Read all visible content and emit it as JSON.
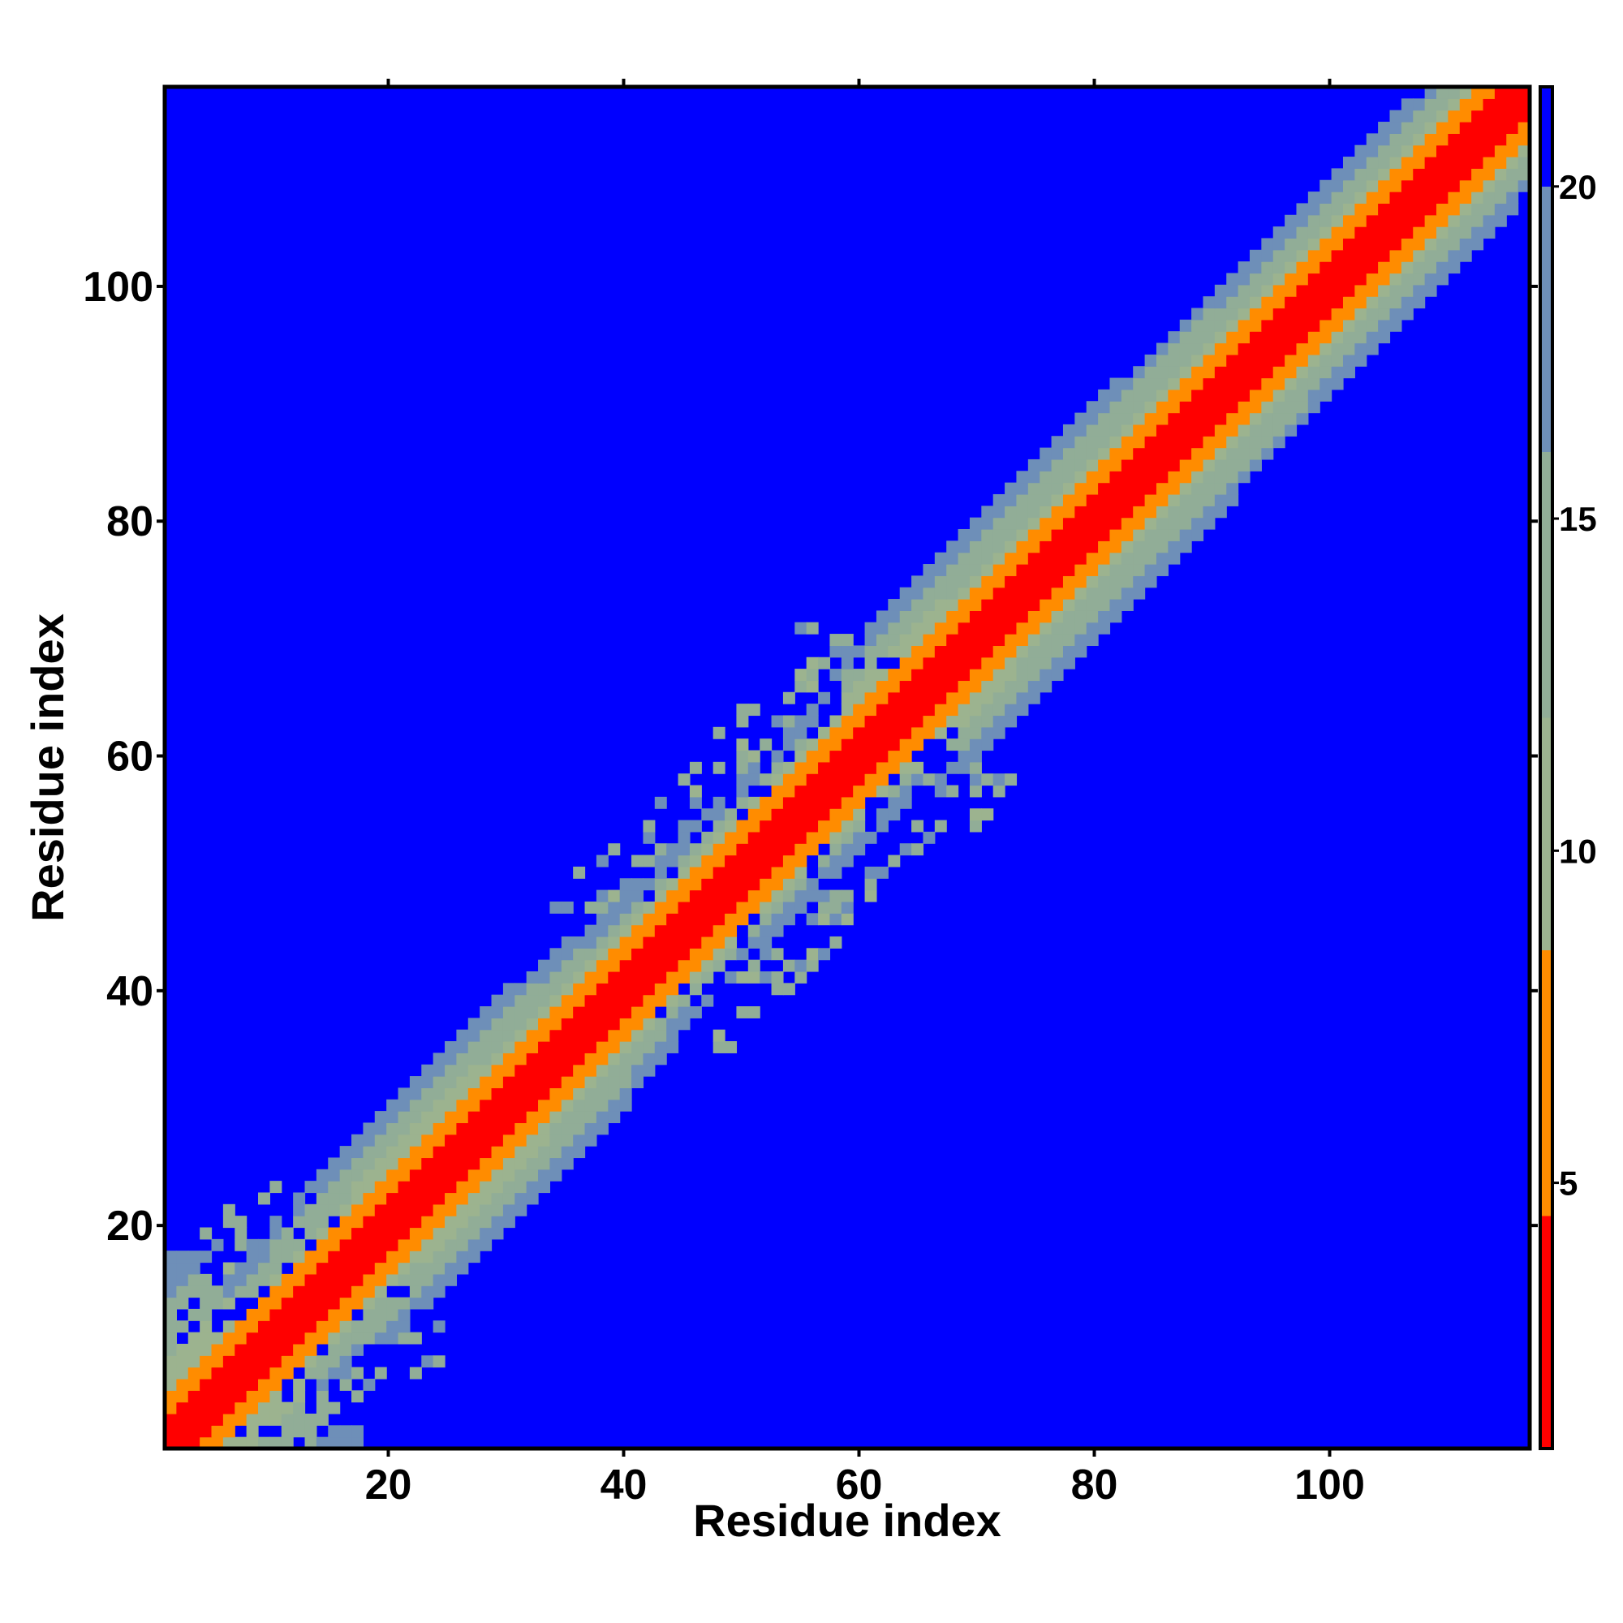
{
  "chart_data": {
    "type": "heatmap",
    "title": "",
    "xlabel": "Residue index",
    "ylabel": "Residue index",
    "n_residues": 117,
    "xlim": [
      1,
      117
    ],
    "ylim": [
      1,
      117
    ],
    "x_ticks": [
      20,
      40,
      60,
      80,
      100
    ],
    "y_ticks": [
      20,
      40,
      60,
      80,
      100
    ],
    "colorbar": {
      "range": [
        1,
        21.5
      ],
      "ticks": [
        5,
        10,
        15,
        20
      ],
      "colors": [
        {
          "from": 1,
          "to": 4.5,
          "color": "#ff0000"
        },
        {
          "from": 4.5,
          "to": 8.5,
          "color": "#ff8c00"
        },
        {
          "from": 8.5,
          "to": 12,
          "color": "#9cb38f"
        },
        {
          "from": 12,
          "to": 16,
          "color": "#91ad97"
        },
        {
          "from": 16,
          "to": 20,
          "color": "#6e8fb8"
        },
        {
          "from": 20,
          "to": 21.5,
          "color": "#0000ff"
        }
      ]
    },
    "description_levels": {
      "diagonal_value": 1,
      "near_diagonal_value": 6,
      "band_value": 12,
      "background_value": 21
    }
  }
}
